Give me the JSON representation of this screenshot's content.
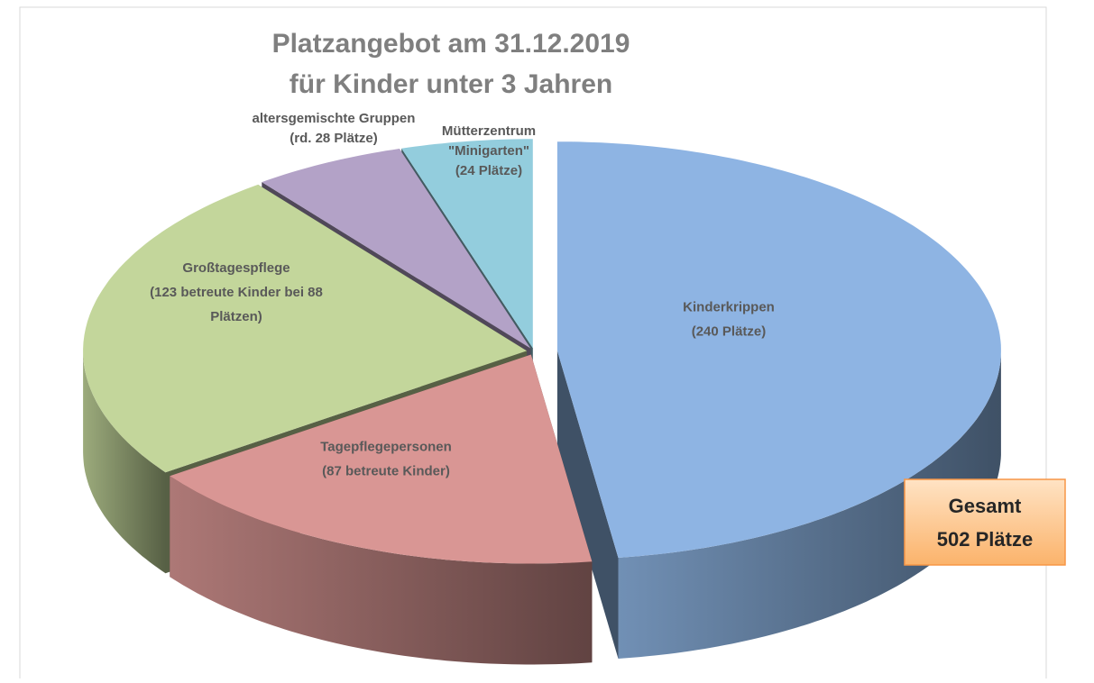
{
  "chart_data": {
    "type": "pie",
    "title": [
      "Platzangebot am 31.12.2019",
      "für Kinder unter 3 Jahren"
    ],
    "categories": [
      [
        "Kinderkrippen",
        "(240 Plätze)"
      ],
      [
        "Tagepflegepersonen",
        "(87 betreute Kinder)"
      ],
      [
        "Großtagespflege",
        "(123 betreute Kinder bei 88",
        "Plätzen)"
      ],
      [
        "altersgemischte Gruppen",
        "(rd. 28 Plätze)"
      ],
      [
        "Mütterzentrum",
        "\"Minigarten\"",
        "(24 Plätze)"
      ]
    ],
    "values": [
      240,
      87,
      123,
      28,
      24
    ],
    "colors": [
      "#8eb4e3",
      "#d99694",
      "#c3d69b",
      "#b3a2c7",
      "#93cddd"
    ],
    "annotation": [
      "Gesamt",
      "502 Plätze"
    ]
  }
}
